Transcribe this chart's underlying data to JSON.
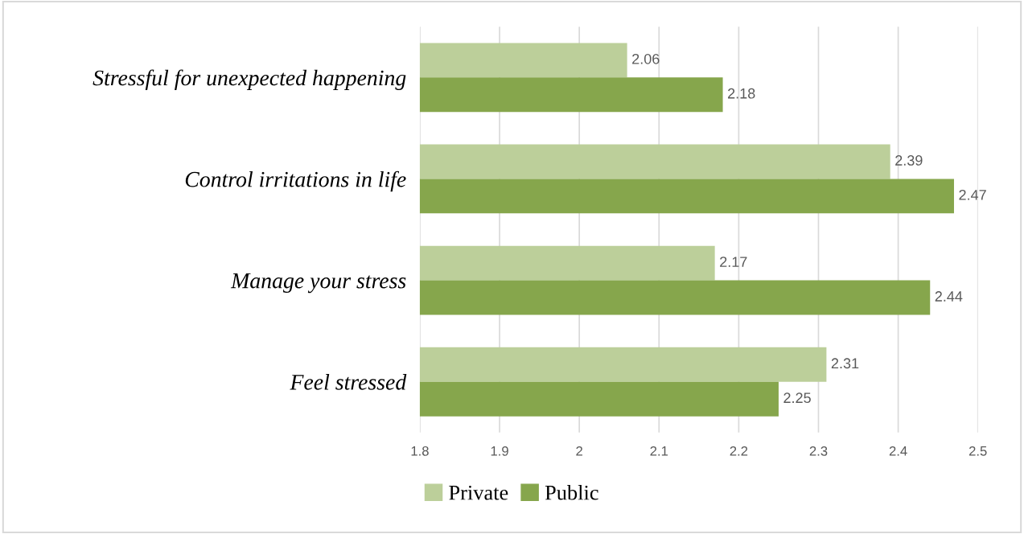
{
  "chart_data": {
    "type": "bar",
    "orientation": "horizontal",
    "categories": [
      "Stressful for unexpected happening",
      "Control irritations in life",
      "Manage your stress",
      "Feel stressed"
    ],
    "series": [
      {
        "name": "Private",
        "color": "#bccf9a",
        "values": [
          2.06,
          2.39,
          2.17,
          2.31
        ]
      },
      {
        "name": "Public",
        "color": "#86a64c",
        "values": [
          2.18,
          2.47,
          2.44,
          2.25
        ]
      }
    ],
    "xlim": [
      1.8,
      2.5
    ],
    "xticks": [
      1.8,
      1.9,
      2,
      2.1,
      2.2,
      2.3,
      2.4,
      2.5
    ],
    "grid": "x",
    "legend": "bottom",
    "data_labels": true
  }
}
